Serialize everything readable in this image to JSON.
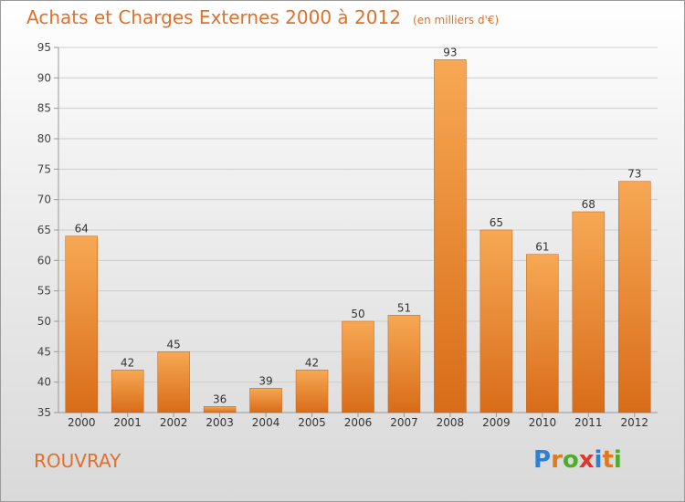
{
  "title": "Achats et Charges Externes 2000 à 2012",
  "subtitle": "(en milliers d'€)",
  "commune": "ROUVRAY",
  "logo": {
    "text": "Proxiti",
    "letters": [
      {
        "ch": "P",
        "color": "#2f7fd6"
      },
      {
        "ch": "r",
        "color": "#e07a20"
      },
      {
        "ch": "o",
        "color": "#4caf2a"
      },
      {
        "ch": "x",
        "color": "#e3352c"
      },
      {
        "ch": "i",
        "color": "#2f7fd6"
      },
      {
        "ch": "t",
        "color": "#e07a20"
      },
      {
        "ch": "i",
        "color": "#4caf2a"
      }
    ]
  },
  "colors": {
    "accent": "#e0702a",
    "bar_light": "#f7a854",
    "bar_dark": "#d86c18",
    "grid": "#cccccc",
    "axis": "#999999"
  },
  "chart_data": {
    "type": "bar",
    "categories": [
      "2000",
      "2001",
      "2002",
      "2003",
      "2004",
      "2005",
      "2006",
      "2007",
      "2008",
      "2009",
      "2010",
      "2011",
      "2012"
    ],
    "values": [
      64,
      42,
      45,
      36,
      39,
      42,
      50,
      51,
      93,
      65,
      61,
      68,
      73
    ],
    "ylim": [
      35,
      95
    ],
    "yticks": [
      35,
      40,
      45,
      50,
      55,
      60,
      65,
      70,
      75,
      80,
      85,
      90,
      95
    ],
    "grid": true,
    "data_labels": true,
    "xlabel": "",
    "ylabel": ""
  }
}
